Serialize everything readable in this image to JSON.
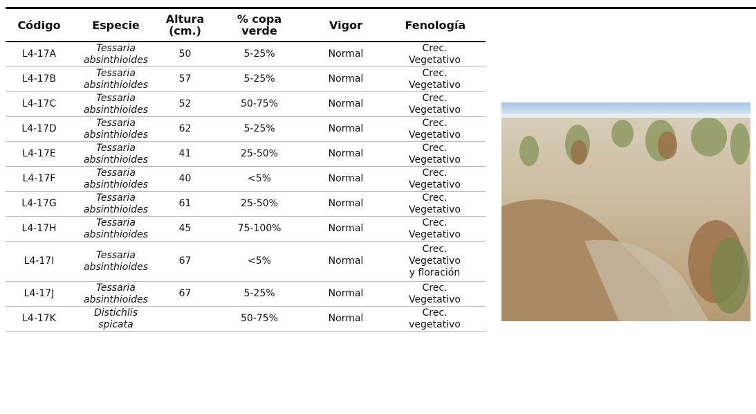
{
  "table": {
    "headers": [
      "Código",
      "Especie",
      "Altura (cm.)",
      "% copa verde",
      "Vigor",
      "Fenología"
    ],
    "rows": [
      [
        "L4-17A",
        "Tessaria absinthioides",
        50,
        "5-25%",
        "Normal",
        "Crec. Vegetativo"
      ],
      [
        "L4-17B",
        "Tessaria absinthioides",
        57,
        "5-25%",
        "Normal",
        "Crec. Vegetativo"
      ],
      [
        "L4-17C",
        "Tessaria absinthioides",
        52,
        "50-75%",
        "Normal",
        "Crec. Vegetativo"
      ],
      [
        "L4-17D",
        "Tessaria absinthioides",
        62,
        "5-25%",
        "Normal",
        "Crec. Vegetativo"
      ],
      [
        "L4-17E",
        "Tessaria absinthioides",
        41,
        "25-50%",
        "Normal",
        "Crec. Vegetativo"
      ],
      [
        "L4-17F",
        "Tessaria absinthioides",
        40,
        "<5%",
        "Normal",
        "Crec. Vegetativo"
      ],
      [
        "L4-17G",
        "Tessaria absinthioides",
        61,
        "25-50%",
        "Normal",
        "Crec. Vegetativo"
      ],
      [
        "L4-17H",
        "Tessaria absinthioides",
        45,
        "75-100%",
        "Normal",
        "Crec. Vegetativo"
      ],
      [
        "L4-17I",
        "Tessaria absinthioides",
        67,
        "<5%",
        "Normal",
        "Crec. Vegetativo y floración"
      ],
      [
        "L4-17J",
        "Tessaria absinthioides",
        67,
        "5-25%",
        "Normal",
        "Crec. Vegetativo"
      ],
      [
        "L4-17K",
        "Distichlis spicata",
        null,
        "50-75%",
        "Normal",
        "Crec. vegetativo"
      ]
    ]
  }
}
